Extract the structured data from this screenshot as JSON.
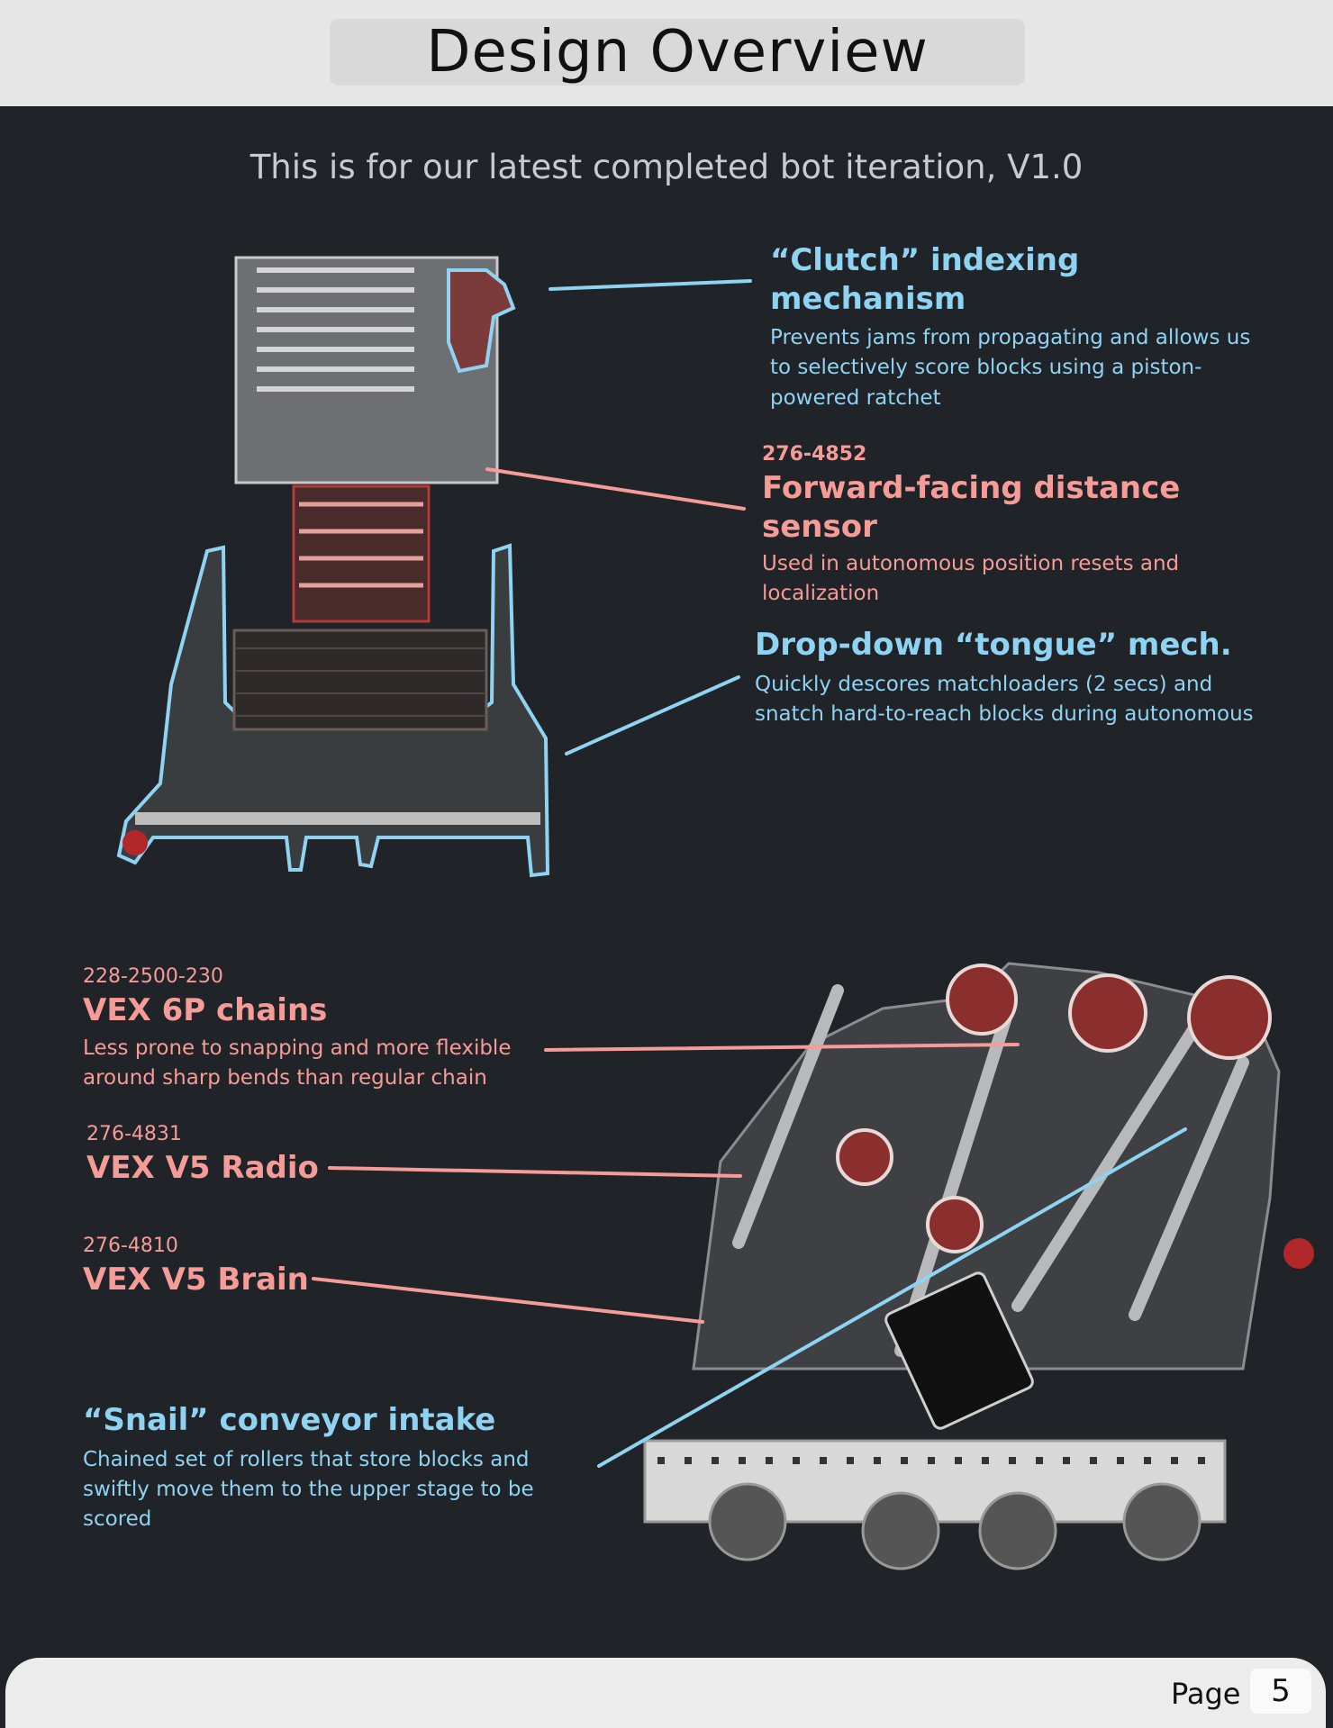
{
  "page": {
    "title": "Design Overview",
    "subtitle": "This is for our latest completed bot iteration, V1.0",
    "page_label": "Page",
    "page_number": "5"
  },
  "callouts": {
    "clutch": {
      "heading": "“Clutch” indexing mechanism",
      "desc": "Prevents jams from propagating and allows us to selectively score blocks using a piston-powered ratchet"
    },
    "distance_sensor": {
      "part_number": "276-4852",
      "heading": "Forward-facing distance sensor",
      "desc": "Used in autonomous position resets and localization"
    },
    "tongue": {
      "heading": "Drop-down “tongue” mech.",
      "desc": "Quickly descores matchloaders (2 secs) and snatch hard-to-reach blocks during autonomous"
    },
    "chains": {
      "part_number": "228-2500-230",
      "heading": "VEX 6P chains",
      "desc": "Less prone to snapping and more flexible around sharp bends than regular chain"
    },
    "radio": {
      "part_number": "276-4831",
      "heading": "VEX V5 Radio"
    },
    "brain": {
      "part_number": "276-4810",
      "heading": "VEX V5 Brain"
    },
    "snail": {
      "heading": "“Snail” conveyor intake",
      "desc": "Chained set of rollers that store blocks and swiftly move them to the upper stage to be scored"
    }
  },
  "colors": {
    "background": "#202327",
    "accent_blue": "#8fd3f2",
    "accent_pink": "#f59b98",
    "header_bg": "#e6e6e6"
  }
}
